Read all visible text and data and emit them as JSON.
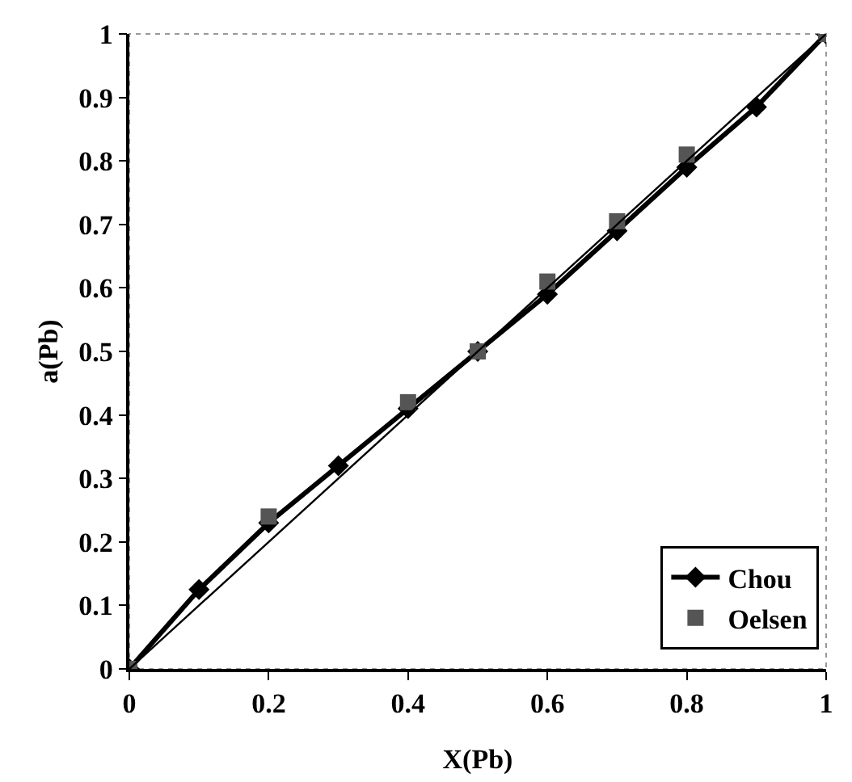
{
  "chart_data": {
    "type": "line",
    "xlabel": "X(Pb)",
    "ylabel": "a(Pb)",
    "xlim": [
      0,
      1
    ],
    "xticks": [
      0,
      0.2,
      0.4,
      0.6,
      0.8,
      1
    ],
    "ylim": [
      0,
      1
    ],
    "yticks": [
      0,
      0.1,
      0.2,
      0.3,
      0.4,
      0.5,
      0.6,
      0.7,
      0.8,
      0.9,
      1
    ],
    "grid": false,
    "legend": "bottom right",
    "series": [
      {
        "name": "Chou",
        "type": "line",
        "color": "#000000",
        "marker": "diamond",
        "x": [
          0,
          0.1,
          0.2,
          0.3,
          0.4,
          0.5,
          0.6,
          0.7,
          0.8,
          0.9,
          1
        ],
        "values": [
          0,
          0.125,
          0.23,
          0.32,
          0.41,
          0.5,
          0.59,
          0.69,
          0.79,
          0.885,
          1
        ]
      },
      {
        "name": "Oelsen",
        "type": "scatter",
        "color": "#555555",
        "marker": "square",
        "x": [
          0,
          0.2,
          0.4,
          0.5,
          0.6,
          0.7,
          0.8,
          1
        ],
        "values": [
          0,
          0.24,
          0.42,
          0.5,
          0.61,
          0.705,
          0.81,
          1
        ]
      },
      {
        "color": "#000000",
        "marker": "none",
        "x": [
          0,
          1
        ],
        "values": [
          0,
          1
        ]
      }
    ]
  }
}
